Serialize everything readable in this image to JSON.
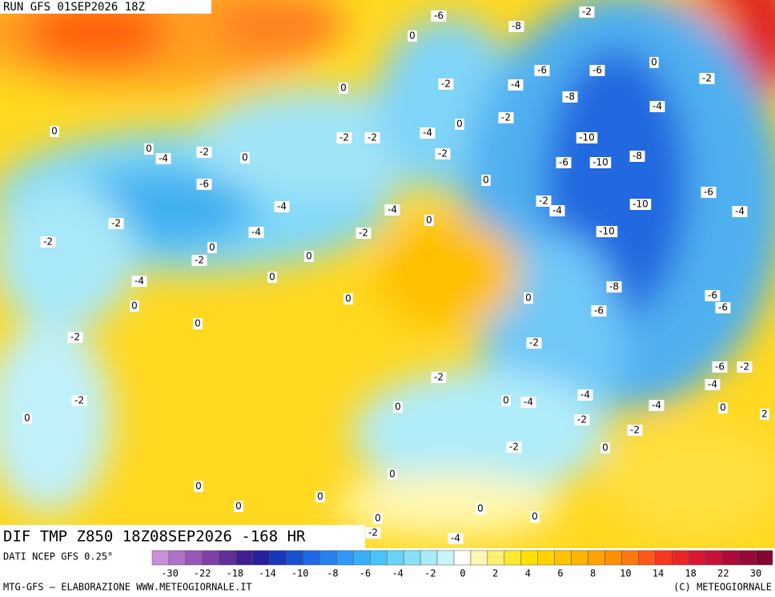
{
  "header": {
    "run": "RUN GFS 01SEP2026 18Z"
  },
  "footer": {
    "field": "DIF TMP Z850 18Z08SEP2026 -168 HR",
    "source": "DATI NCEP GFS 0.25°",
    "credit_left": "MTG-GFS — ELABORAZIONE WWW.METEOGIORNALE.IT",
    "credit_right": "(C) METEOGIORNALE"
  },
  "colorbar": {
    "colors": [
      "#c890d8",
      "#b070c8",
      "#9858b8",
      "#8040a8",
      "#603098",
      "#402090",
      "#2820a0",
      "#1838b8",
      "#1850d0",
      "#2068e8",
      "#2880f0",
      "#3098f8",
      "#38b0f8",
      "#48c4f8",
      "#68d4f8",
      "#88e0f8",
      "#a8ecfa",
      "#c8f6fc",
      "#ffffff",
      "#fff8b0",
      "#fff070",
      "#ffe830",
      "#ffe000",
      "#ffd400",
      "#ffc400",
      "#ffb400",
      "#ffa400",
      "#ff9000",
      "#ff7810",
      "#ff5818",
      "#f83820",
      "#e82828",
      "#d81830",
      "#c81038",
      "#b00838",
      "#980838",
      "#800830"
    ],
    "labels": [
      -30,
      -22,
      -18,
      -14,
      -10,
      -8,
      -6,
      -4,
      -2,
      0,
      2,
      4,
      6,
      8,
      10,
      14,
      18,
      22,
      30
    ]
  },
  "map_labels": [
    -6,
    -8,
    -2,
    0,
    0,
    -6,
    -6,
    -2,
    -2,
    -4,
    0,
    -8,
    -4,
    0,
    -2,
    0,
    0,
    -2,
    -2,
    -4,
    -10,
    -2,
    -4,
    0,
    -2,
    -8,
    -6,
    -10,
    0,
    -6,
    -4,
    -4,
    -2,
    -4,
    -10,
    -6,
    -4,
    -2,
    0,
    -2,
    -4,
    -2,
    -10,
    0,
    -2,
    0,
    0,
    -4,
    -8,
    -6,
    0,
    0,
    0,
    -6,
    -6,
    0,
    -2,
    -2,
    -6,
    -2,
    -2,
    -4,
    -4,
    -2,
    0,
    -4,
    -4,
    0,
    2,
    0,
    0,
    -2,
    -2,
    -2,
    0,
    0,
    0,
    0,
    0,
    0,
    0,
    0,
    -2,
    -4
  ]
}
